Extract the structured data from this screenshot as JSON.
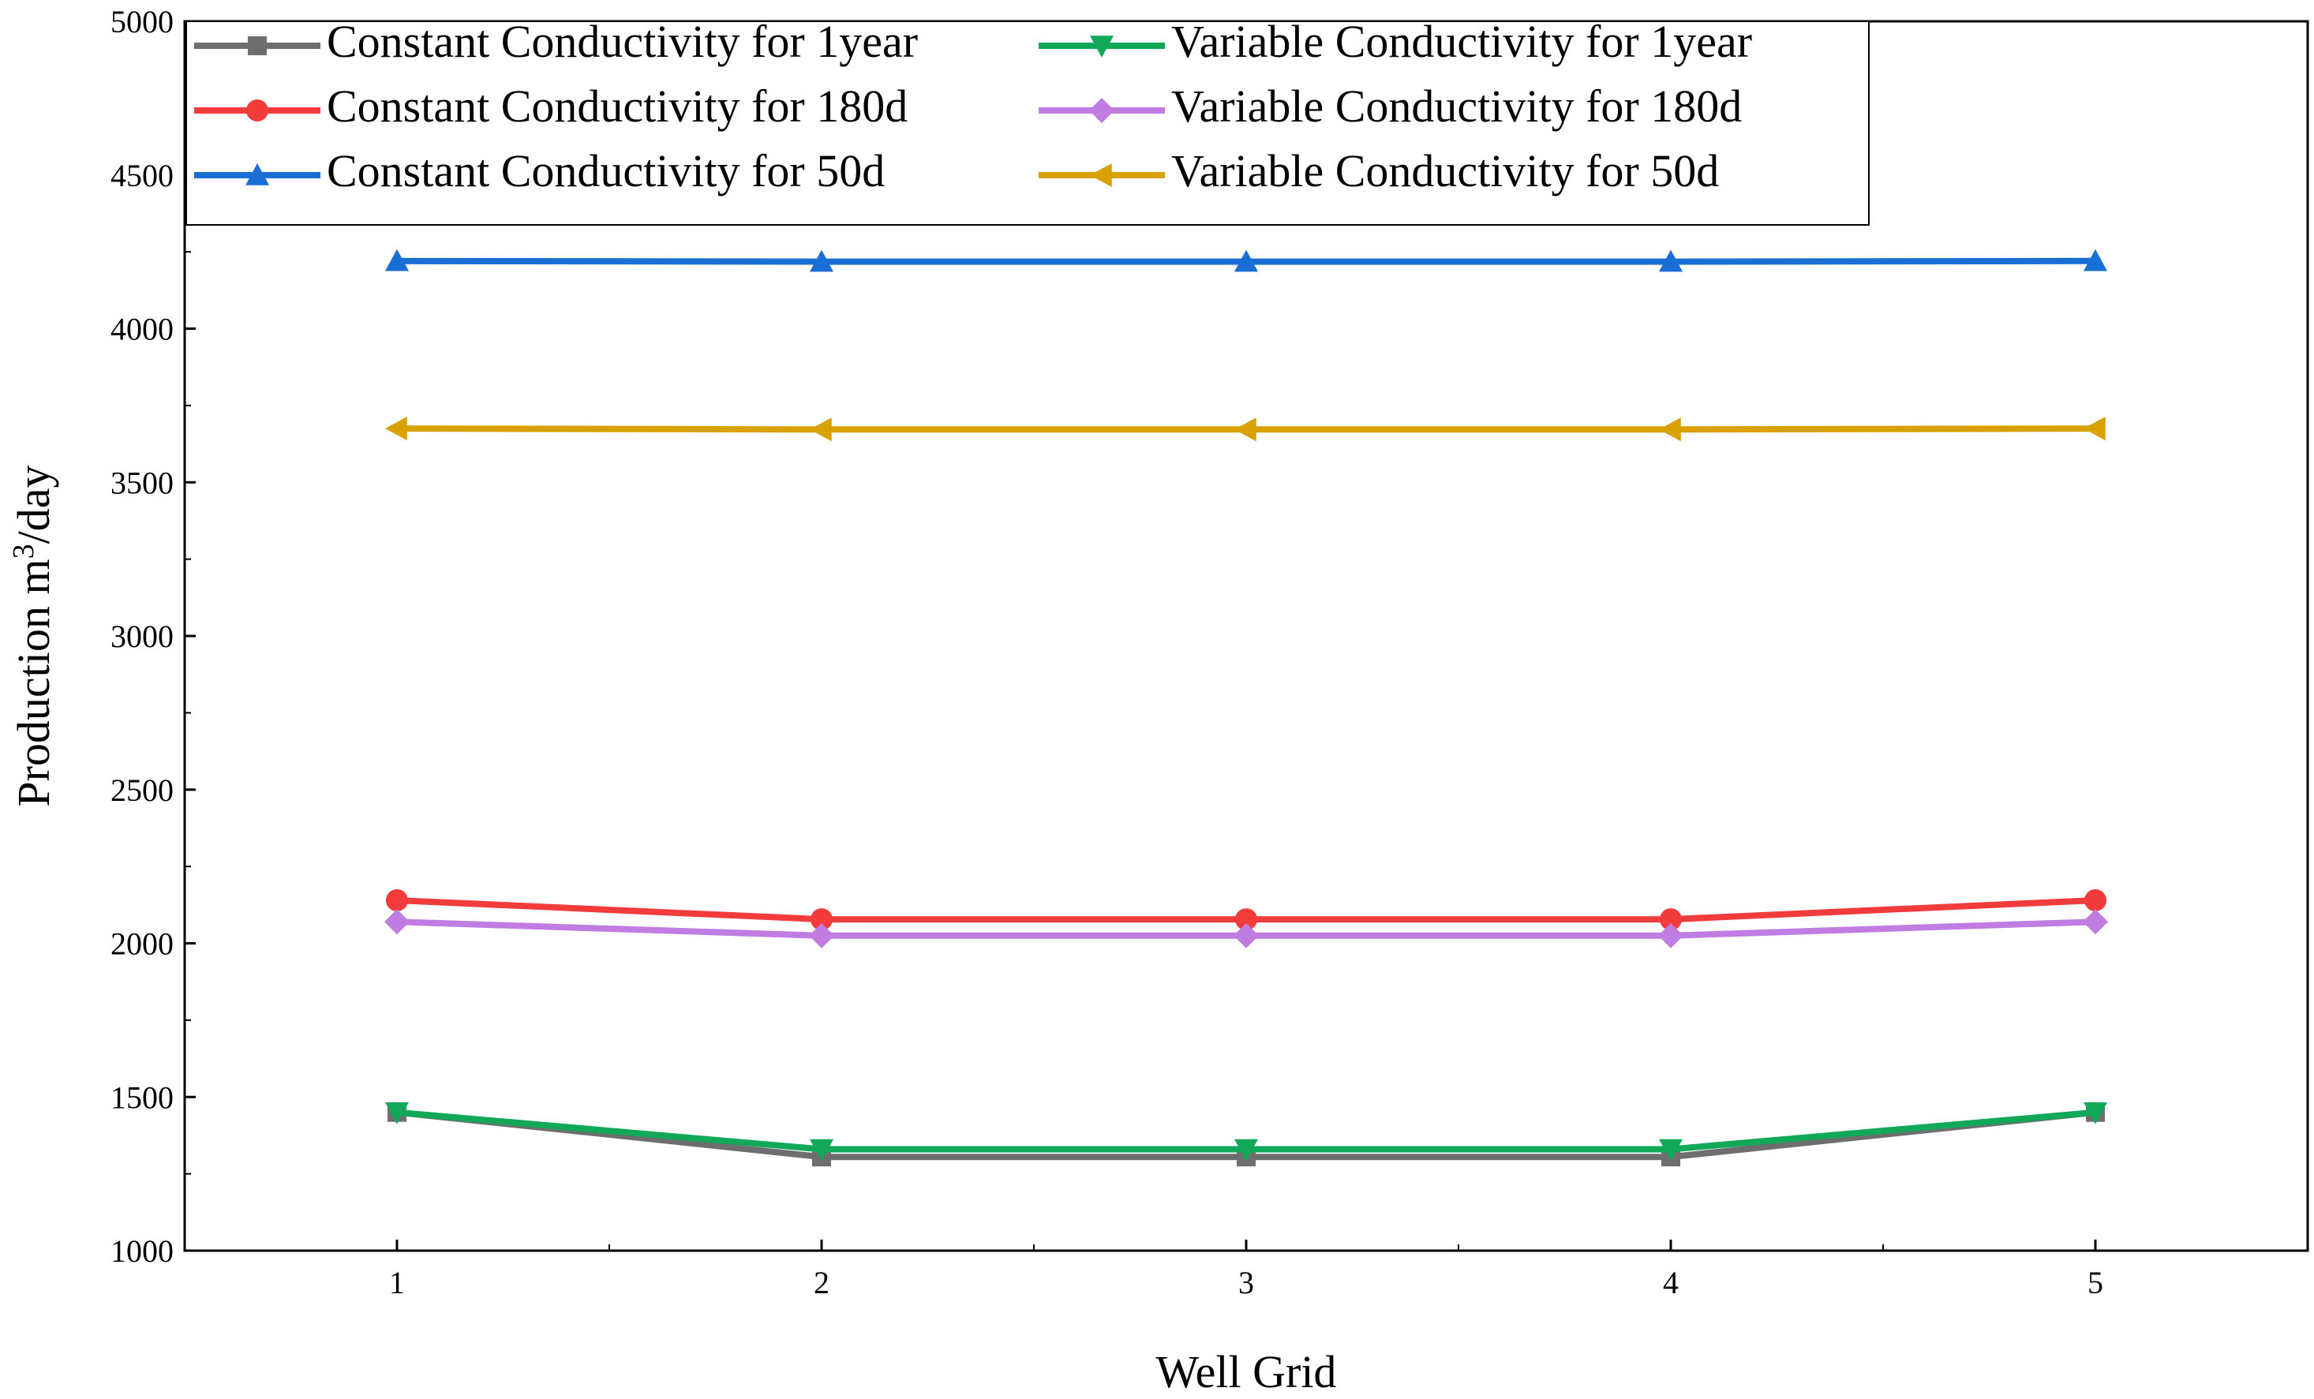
{
  "chart_data": {
    "type": "line",
    "title": "",
    "xlabel": "Well Grid",
    "ylabel_main": "Production m",
    "ylabel_sup": "3",
    "ylabel_tail": "/day",
    "x": [
      1,
      2,
      3,
      4,
      5
    ],
    "x_tick_labels": [
      "1",
      "2",
      "3",
      "4",
      "5"
    ],
    "xlim": [
      0.5,
      5.5
    ],
    "ylim": [
      1000,
      5000
    ],
    "y_ticks": [
      1000,
      1500,
      2000,
      2500,
      3000,
      3500,
      4000,
      4500,
      5000
    ],
    "y_tick_labels": [
      "1000",
      "1500",
      "2000",
      "2500",
      "3000",
      "3500",
      "4000",
      "4500",
      "5000"
    ],
    "grid": false,
    "legend_position": "top-left",
    "series": [
      {
        "name": "Constant Conductivity for 1year",
        "color": "#6e6e6e",
        "marker": "square",
        "values": [
          1450,
          1305,
          1305,
          1305,
          1450
        ]
      },
      {
        "name": "Variable Conductivity for 1year",
        "color": "#12a85a",
        "marker": "triangle-down",
        "values": [
          1450,
          1330,
          1330,
          1330,
          1450
        ]
      },
      {
        "name": "Constant Conductivity for 180d",
        "color": "#f23b3b",
        "marker": "circle",
        "values": [
          2140,
          2078,
          2078,
          2078,
          2140
        ]
      },
      {
        "name": "Variable Conductivity for 180d",
        "color": "#c07ce0",
        "marker": "diamond",
        "values": [
          2070,
          2025,
          2025,
          2025,
          2070
        ]
      },
      {
        "name": "Constant Conductivity for 50d",
        "color": "#1a6fd6",
        "marker": "triangle-up",
        "values": [
          4220,
          4218,
          4218,
          4218,
          4220
        ]
      },
      {
        "name": "Variable Conductivity for 50d",
        "color": "#d9a100",
        "marker": "triangle-left",
        "values": [
          3675,
          3672,
          3672,
          3672,
          3675
        ]
      }
    ]
  }
}
